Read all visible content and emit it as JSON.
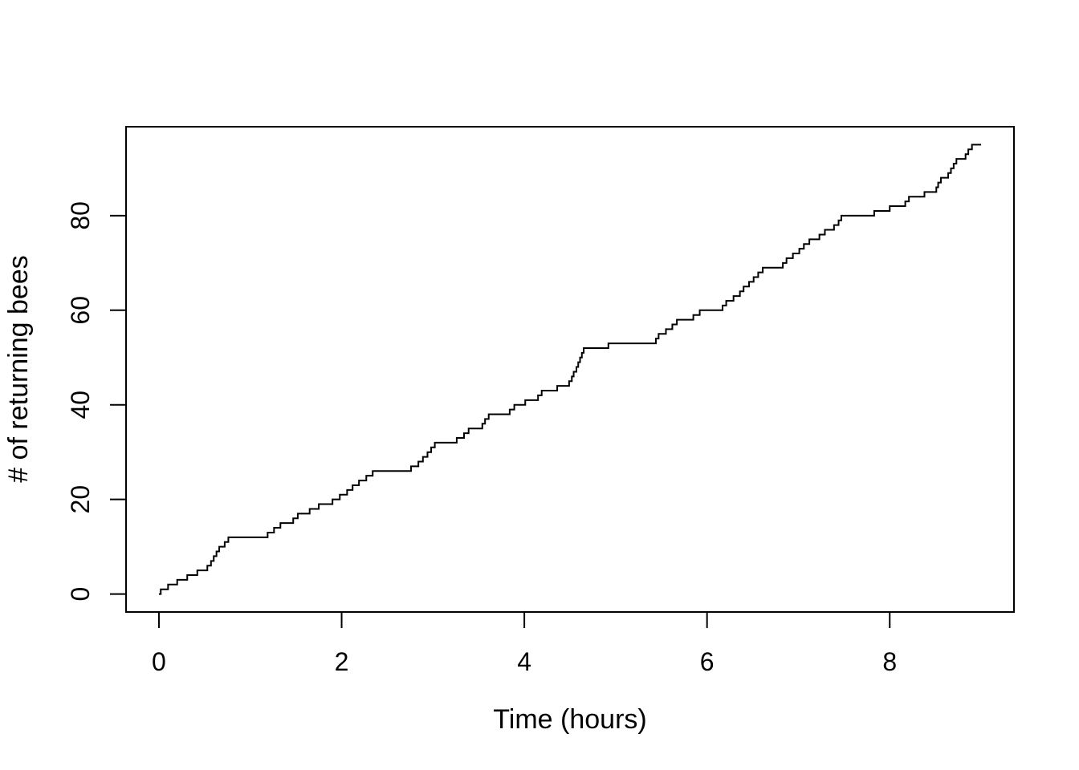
{
  "chart_data": {
    "type": "line",
    "subtype": "step-cumulative",
    "title": "",
    "xlabel": "Time (hours)",
    "ylabel": "# of returning bees",
    "x_ticks": [
      0,
      2,
      4,
      6,
      8
    ],
    "y_ticks": [
      0,
      20,
      40,
      60,
      80
    ],
    "xlim": [
      0,
      9
    ],
    "ylim": [
      0,
      95
    ],
    "grid": false,
    "legend": false,
    "line_color": "#000000",
    "background_color": "#ffffff",
    "start_point": [
      0,
      0
    ],
    "final_count": 95,
    "end_time": 9.0,
    "event_times": [
      0.02,
      0.1,
      0.2,
      0.31,
      0.42,
      0.53,
      0.57,
      0.6,
      0.63,
      0.66,
      0.72,
      0.76,
      1.19,
      1.26,
      1.33,
      1.47,
      1.52,
      1.65,
      1.75,
      1.9,
      1.98,
      2.06,
      2.12,
      2.19,
      2.27,
      2.34,
      2.76,
      2.84,
      2.89,
      2.94,
      2.98,
      3.02,
      3.26,
      3.34,
      3.39,
      3.54,
      3.57,
      3.61,
      3.84,
      3.89,
      4.01,
      4.15,
      4.19,
      4.36,
      4.49,
      4.52,
      4.54,
      4.57,
      4.59,
      4.61,
      4.63,
      4.65,
      4.92,
      5.44,
      5.47,
      5.55,
      5.62,
      5.67,
      5.85,
      5.92,
      6.17,
      6.21,
      6.29,
      6.36,
      6.4,
      6.46,
      6.51,
      6.56,
      6.61,
      6.83,
      6.87,
      6.94,
      7.01,
      7.06,
      7.12,
      7.23,
      7.29,
      7.39,
      7.44,
      7.47,
      7.83,
      8.0,
      8.17,
      8.21,
      8.38,
      8.51,
      8.53,
      8.56,
      8.64,
      8.67,
      8.7,
      8.73,
      8.83,
      8.86,
      8.9
    ]
  }
}
